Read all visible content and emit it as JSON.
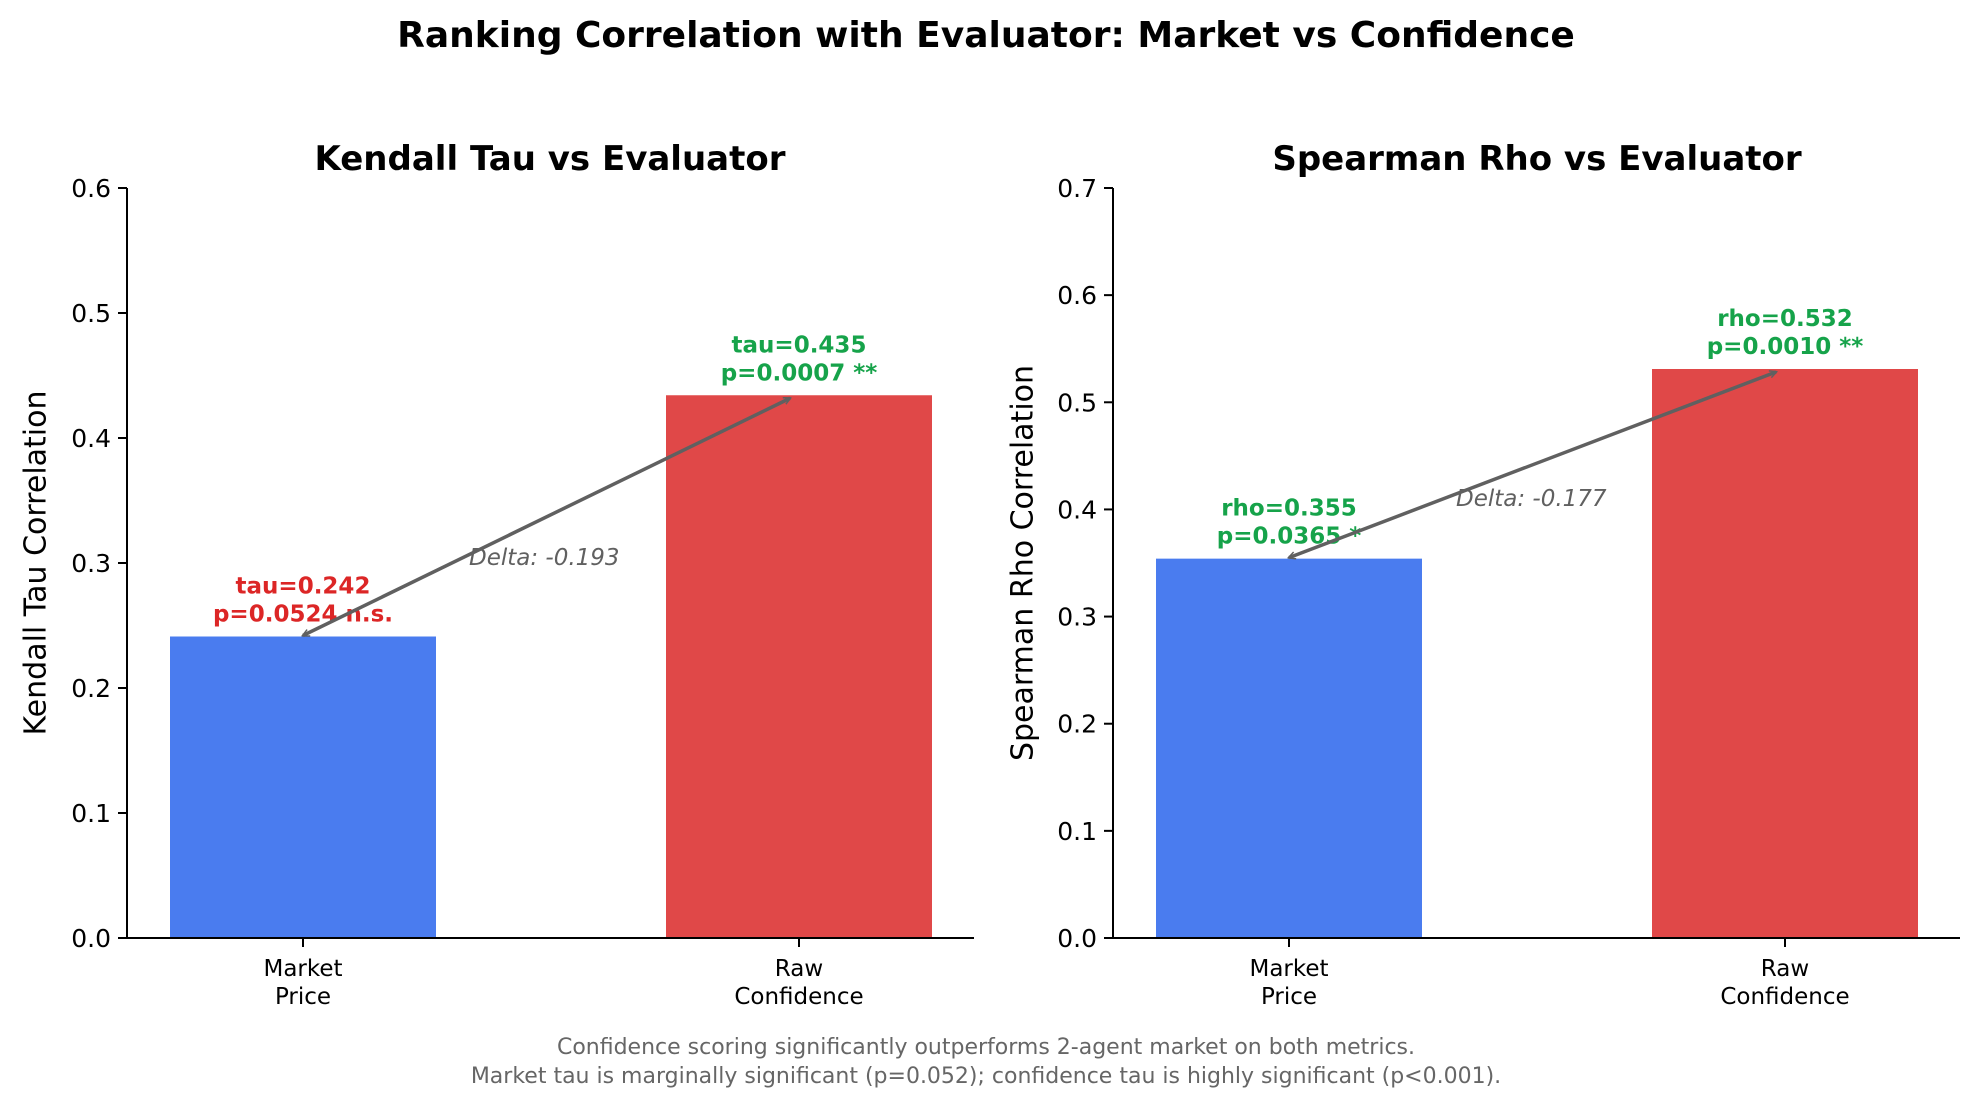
{
  "suptitle": "Ranking Correlation with Evaluator: Market vs Confidence",
  "footnote": [
    "Confidence scoring significantly outperforms 2-agent market on both metrics.",
    "Market tau is marginally significant (p=0.052); confidence tau is highly significant (p<0.001)."
  ],
  "colors": {
    "market_bar": "#4a7cef",
    "confidence_bar": "#e04848",
    "significant_text": "#16a34a",
    "not_significant_text": "#dc2626",
    "arrow": "#606060",
    "footnote": "#666666"
  },
  "chart_data": [
    {
      "type": "bar",
      "title": "Kendall Tau vs Evaluator",
      "ylabel": "Kendall Tau Correlation",
      "xlabel": "",
      "categories": [
        "Market\nPrice",
        "Raw\nConfidence"
      ],
      "values": [
        0.242,
        0.435
      ],
      "ylim": [
        0,
        0.6
      ],
      "yticks": [
        "0.0",
        "0.1",
        "0.2",
        "0.3",
        "0.4",
        "0.5",
        "0.6"
      ],
      "bar_labels": [
        {
          "lines": [
            "tau=0.242",
            "p=0.0524 n.s."
          ],
          "color": "#dc2626"
        },
        {
          "lines": [
            "tau=0.435",
            "p=0.0007 **"
          ],
          "color": "#16a34a"
        }
      ],
      "delta_label": "Delta: -0.193",
      "grid": false
    },
    {
      "type": "bar",
      "title": "Spearman Rho vs Evaluator",
      "ylabel": "Spearman Rho Correlation",
      "xlabel": "",
      "categories": [
        "Market\nPrice",
        "Raw\nConfidence"
      ],
      "values": [
        0.355,
        0.532
      ],
      "ylim": [
        0,
        0.7
      ],
      "yticks": [
        "0.0",
        "0.1",
        "0.2",
        "0.3",
        "0.4",
        "0.5",
        "0.6",
        "0.7"
      ],
      "bar_labels": [
        {
          "lines": [
            "rho=0.355",
            "p=0.0365 *"
          ],
          "color": "#16a34a"
        },
        {
          "lines": [
            "rho=0.532",
            "p=0.0010 **"
          ],
          "color": "#16a34a"
        }
      ],
      "delta_label": "Delta: -0.177",
      "grid": false
    }
  ]
}
